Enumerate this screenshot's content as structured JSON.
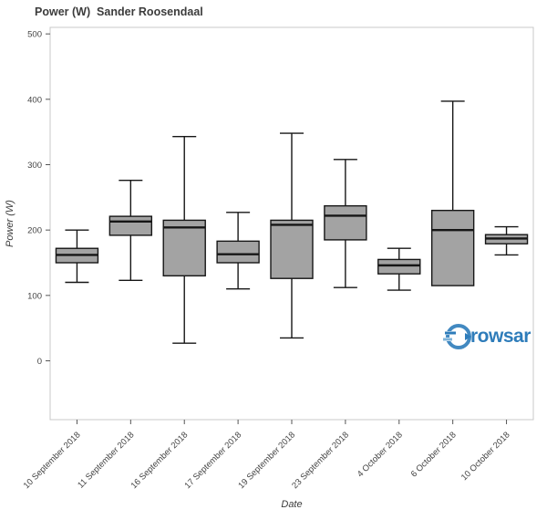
{
  "header": {
    "title": "Power (W)  Sander Roosendaal"
  },
  "watermark": {
    "text": "rowsar",
    "color": "#2e7cba"
  },
  "chart_data": {
    "type": "boxplot",
    "title": "Power (W)  Sander Roosendaal",
    "xlabel": "Date",
    "ylabel": "Power (W)",
    "ylim": [
      -90,
      510
    ],
    "yticks": [
      0,
      100,
      200,
      300,
      400,
      500
    ],
    "grid": false,
    "legend": "none",
    "box_fill": "#a3a3a3",
    "box_stroke": "#161616",
    "axis_color": "#c8c8c8",
    "tick_color": "#555555",
    "label_color": "#444444",
    "categories": [
      "10 September 2018",
      "11 September 2018",
      "16 September 2018",
      "17 September 2018",
      "19 September 2018",
      "23 September 2018",
      "4 October 2018",
      "6 October 2018",
      "10 October 2018"
    ],
    "boxes": [
      {
        "low": 120,
        "q1": 150,
        "median": 162,
        "q3": 172,
        "high": 200
      },
      {
        "low": 123,
        "q1": 192,
        "median": 213,
        "q3": 221,
        "high": 276
      },
      {
        "low": 27,
        "q1": 130,
        "median": 204,
        "q3": 215,
        "high": 343
      },
      {
        "low": 110,
        "q1": 150,
        "median": 163,
        "q3": 183,
        "high": 227
      },
      {
        "low": 35,
        "q1": 126,
        "median": 208,
        "q3": 215,
        "high": 348
      },
      {
        "low": 112,
        "q1": 185,
        "median": 222,
        "q3": 237,
        "high": 308
      },
      {
        "low": 108,
        "q1": 133,
        "median": 146,
        "q3": 155,
        "high": 172
      },
      {
        "low": 115,
        "q1": 115,
        "median": 200,
        "q3": 230,
        "high": 397
      },
      {
        "low": 162,
        "q1": 179,
        "median": 187,
        "q3": 193,
        "high": 205
      }
    ]
  }
}
